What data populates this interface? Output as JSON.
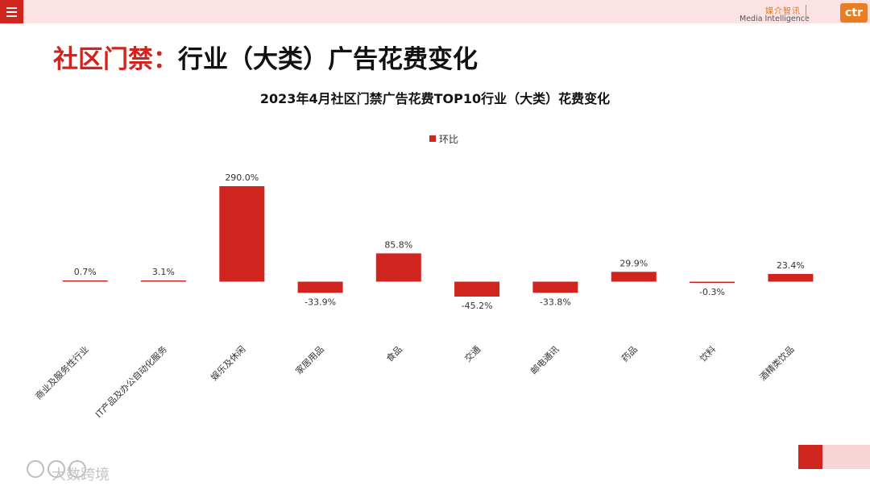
{
  "header": {
    "title_red": "社区门禁：",
    "title_black": "行业（大类）广告花费变化",
    "logo_cn": "媒介智讯",
    "logo_en": "Media Intelligence",
    "logo_badge": "ctr"
  },
  "colors": {
    "accent": "#d0241f",
    "logo_orange": "#e87d23",
    "band": "#fbe3e3"
  },
  "icons": {
    "menu": "hamburger-menu-icon"
  },
  "watermark": {
    "text": "大数跨境"
  },
  "chart_data": {
    "type": "bar",
    "title": "2023年4月社区门禁广告花费TOP10行业（大类）花费变化",
    "legend": "top-center",
    "categories": [
      "商业及服务性行业",
      "IT产品及办公自动化服务",
      "娱乐及休闲",
      "家居用品",
      "食品",
      "交通",
      "邮电通讯",
      "药品",
      "饮料",
      "酒精类饮品"
    ],
    "series": [
      {
        "name": "环比",
        "color": "#d0241f",
        "values": [
          0.7,
          3.1,
          290.0,
          -33.9,
          85.8,
          -45.2,
          -33.8,
          29.9,
          -0.3,
          23.4
        ],
        "labels": [
          "0.7%",
          "3.1%",
          "290.0%",
          "-33.9%",
          "85.8%",
          "-45.2%",
          "-33.8%",
          "29.9%",
          "-0.3%",
          "23.4%"
        ]
      }
    ]
  }
}
